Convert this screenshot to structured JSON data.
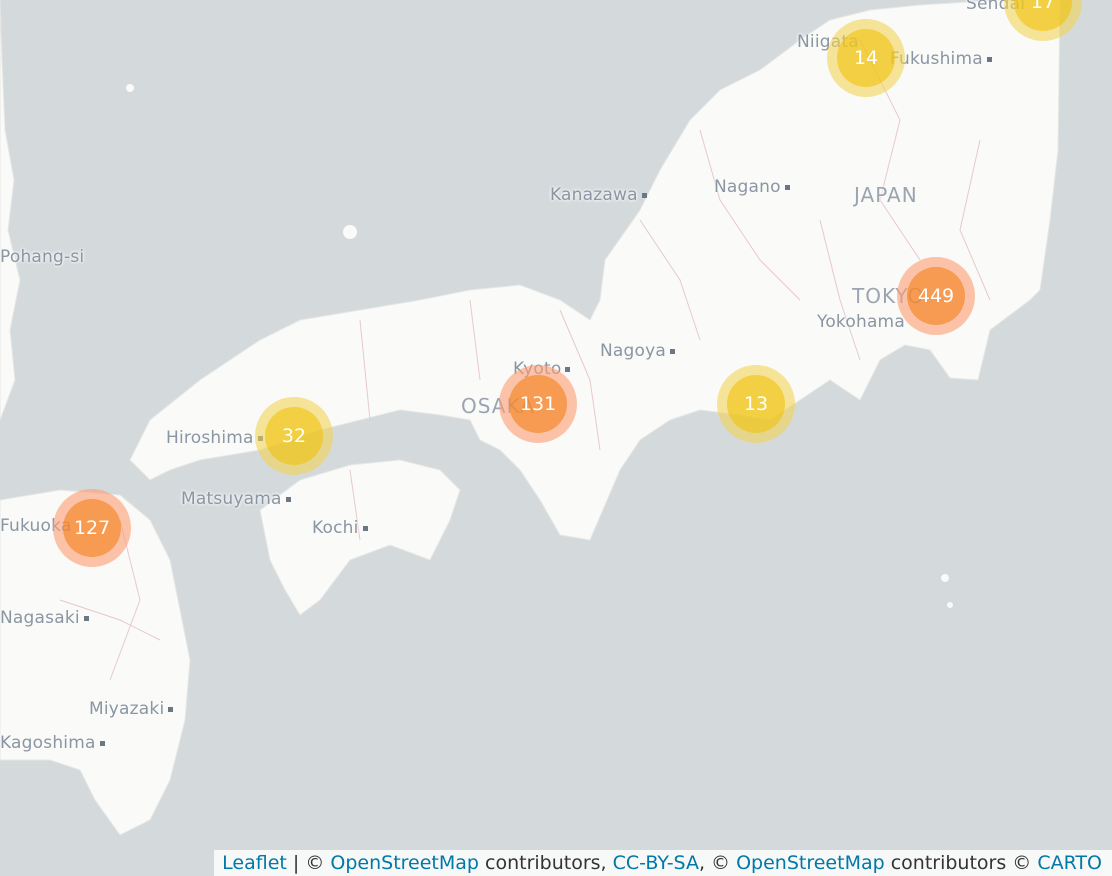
{
  "map": {
    "labels": {
      "sendai": "Sendai",
      "niigata": "Niigata",
      "fukushima": "Fukushima",
      "kanazawa": "Kanazawa",
      "nagano": "Nagano",
      "japan": "JAPAN",
      "pohang": "Pohang-si",
      "tokyo": "TOKYO",
      "yokohama": "Yokohama",
      "kyoto": "Kyoto",
      "nagoya": "Nagoya",
      "osaka": "OSAKA",
      "hiroshima": "Hiroshima",
      "matsuyama": "Matsuyama",
      "kochi": "Kochi",
      "fukuoka": "Fukuoka",
      "nagasaki": "Nagasaki",
      "miyazaki": "Miyazaki",
      "kagoshima": "Kagoshima"
    },
    "clusters": {
      "sendai": "17",
      "niigata": "14",
      "tokyo": "449",
      "osaka": "131",
      "shizuoka": "13",
      "hiroshima": "32",
      "fukuoka": "127"
    }
  },
  "attribution": {
    "leaflet": "Leaflet",
    "sep1": " | © ",
    "osm1": "OpenStreetMap",
    "contributors1": " contributors, ",
    "ccbysa": "CC-BY-SA",
    "sep2": ", © ",
    "osm2": "OpenStreetMap",
    "contributors2": " contributors © ",
    "carto": "CARTO"
  },
  "colors": {
    "water": "#d4dadc",
    "land": "#fafaf8",
    "borders": "#e8c9cd",
    "small_cluster": "#f0c20c",
    "medium_cluster": "#f18017",
    "link": "#0078a8"
  }
}
